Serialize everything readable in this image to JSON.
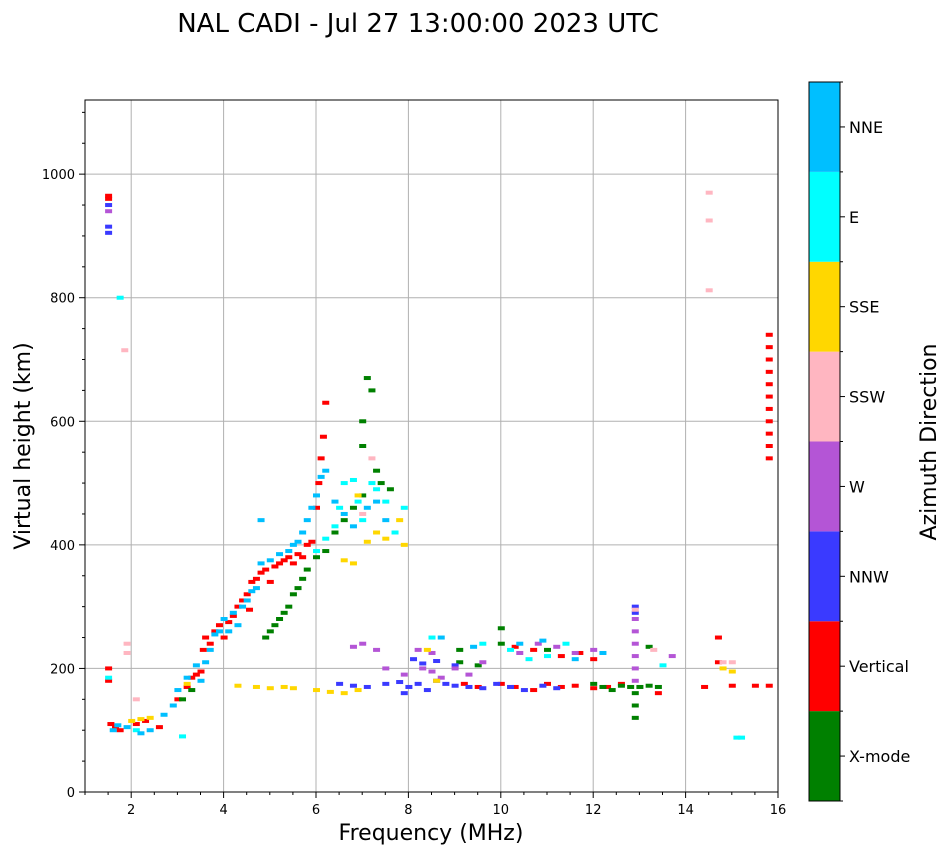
{
  "chart_data": {
    "type": "scatter",
    "title": "NAL CADI - Jul 27 13:00:00 2023 UTC",
    "xlabel": "Frequency (MHz)",
    "ylabel": "Virtual height (km)",
    "xlim": [
      1,
      16
    ],
    "ylim": [
      0,
      1120
    ],
    "xticks": [
      2,
      4,
      6,
      8,
      10,
      12,
      14,
      16
    ],
    "yticks": [
      0,
      200,
      400,
      600,
      800,
      1000
    ],
    "grid": true,
    "colorbar": {
      "label": "Azimuth Direction",
      "categories": [
        "X-mode",
        "Vertical",
        "NNW",
        "W",
        "SSW",
        "SSE",
        "E",
        "NNE"
      ],
      "colors": {
        "X-mode": "#008000",
        "Vertical": "#ff0000",
        "NNW": "#3a3aff",
        "W": "#b455d6",
        "SSW": "#ffb6c1",
        "SSE": "#ffd700",
        "E": "#00ffff",
        "NNE": "#00bfff"
      }
    },
    "series": [
      {
        "name": "Vertical",
        "points": [
          [
            1.5,
            965
          ],
          [
            1.5,
            960
          ],
          [
            1.5,
            200
          ],
          [
            1.5,
            180
          ],
          [
            1.55,
            110
          ],
          [
            1.65,
            105
          ],
          [
            1.75,
            100
          ],
          [
            2.1,
            110
          ],
          [
            2.3,
            115
          ],
          [
            2.6,
            105
          ],
          [
            3.0,
            150
          ],
          [
            3.2,
            170
          ],
          [
            3.3,
            185
          ],
          [
            3.4,
            190
          ],
          [
            3.5,
            195
          ],
          [
            3.55,
            230
          ],
          [
            3.6,
            250
          ],
          [
            3.7,
            240
          ],
          [
            3.8,
            260
          ],
          [
            3.9,
            270
          ],
          [
            4.0,
            250
          ],
          [
            4.1,
            275
          ],
          [
            4.2,
            285
          ],
          [
            4.3,
            300
          ],
          [
            4.4,
            310
          ],
          [
            4.5,
            320
          ],
          [
            4.55,
            295
          ],
          [
            4.6,
            340
          ],
          [
            4.7,
            345
          ],
          [
            4.8,
            355
          ],
          [
            4.9,
            360
          ],
          [
            5.0,
            340
          ],
          [
            5.1,
            365
          ],
          [
            5.2,
            370
          ],
          [
            5.3,
            375
          ],
          [
            5.4,
            380
          ],
          [
            5.5,
            370
          ],
          [
            5.6,
            385
          ],
          [
            5.7,
            380
          ],
          [
            5.8,
            400
          ],
          [
            5.9,
            405
          ],
          [
            6.0,
            460
          ],
          [
            6.05,
            500
          ],
          [
            6.1,
            540
          ],
          [
            6.15,
            575
          ],
          [
            6.2,
            630
          ],
          [
            9.2,
            175
          ],
          [
            9.5,
            170
          ],
          [
            10.0,
            175
          ],
          [
            10.3,
            170
          ],
          [
            10.7,
            165
          ],
          [
            11.0,
            175
          ],
          [
            11.3,
            170
          ],
          [
            11.6,
            172
          ],
          [
            12.0,
            168
          ],
          [
            12.3,
            170
          ],
          [
            12.6,
            175
          ],
          [
            13.4,
            160
          ],
          [
            14.4,
            170
          ],
          [
            14.7,
            250
          ],
          [
            14.7,
            210
          ],
          [
            15.0,
            172
          ],
          [
            15.5,
            172
          ],
          [
            15.8,
            172
          ],
          [
            15.8,
            740
          ],
          [
            15.8,
            720
          ],
          [
            15.8,
            700
          ],
          [
            15.8,
            680
          ],
          [
            15.8,
            660
          ],
          [
            15.8,
            640
          ],
          [
            15.8,
            620
          ],
          [
            15.8,
            600
          ],
          [
            15.8,
            580
          ],
          [
            15.8,
            560
          ],
          [
            15.8,
            540
          ],
          [
            10.3,
            235
          ],
          [
            10.7,
            230
          ],
          [
            11.3,
            220
          ],
          [
            11.7,
            225
          ],
          [
            12.0,
            215
          ]
        ]
      },
      {
        "name": "X-mode",
        "points": [
          [
            3.1,
            150
          ],
          [
            3.3,
            165
          ],
          [
            4.9,
            250
          ],
          [
            5.0,
            260
          ],
          [
            5.1,
            270
          ],
          [
            5.2,
            280
          ],
          [
            5.3,
            290
          ],
          [
            5.4,
            300
          ],
          [
            5.5,
            320
          ],
          [
            5.6,
            330
          ],
          [
            5.7,
            345
          ],
          [
            5.8,
            360
          ],
          [
            6.0,
            380
          ],
          [
            6.2,
            390
          ],
          [
            6.4,
            420
          ],
          [
            6.6,
            440
          ],
          [
            6.8,
            460
          ],
          [
            7.0,
            480
          ],
          [
            7.0,
            560
          ],
          [
            7.0,
            600
          ],
          [
            7.1,
            670
          ],
          [
            7.2,
            650
          ],
          [
            7.3,
            520
          ],
          [
            7.4,
            500
          ],
          [
            7.6,
            490
          ],
          [
            9.1,
            230
          ],
          [
            9.1,
            210
          ],
          [
            9.5,
            205
          ],
          [
            10.0,
            265
          ],
          [
            10.0,
            240
          ],
          [
            11.0,
            230
          ],
          [
            12.0,
            175
          ],
          [
            12.2,
            170
          ],
          [
            12.4,
            165
          ],
          [
            12.6,
            172
          ],
          [
            12.8,
            170
          ],
          [
            13.0,
            170
          ],
          [
            13.2,
            172
          ],
          [
            13.4,
            170
          ],
          [
            12.9,
            160
          ],
          [
            12.9,
            140
          ],
          [
            12.9,
            120
          ],
          [
            13.2,
            235
          ]
        ]
      },
      {
        "name": "NNW",
        "points": [
          [
            1.5,
            950
          ],
          [
            1.5,
            915
          ],
          [
            1.5,
            905
          ],
          [
            6.5,
            175
          ],
          [
            6.8,
            172
          ],
          [
            7.1,
            170
          ],
          [
            7.5,
            175
          ],
          [
            7.8,
            178
          ],
          [
            8.0,
            170
          ],
          [
            8.2,
            175
          ],
          [
            8.4,
            165
          ],
          [
            8.6,
            180
          ],
          [
            8.8,
            175
          ],
          [
            9.0,
            172
          ],
          [
            9.3,
            170
          ],
          [
            9.6,
            168
          ],
          [
            9.9,
            175
          ],
          [
            10.2,
            170
          ],
          [
            10.5,
            165
          ],
          [
            10.9,
            172
          ],
          [
            11.2,
            168
          ],
          [
            12.9,
            300
          ],
          [
            12.9,
            290
          ],
          [
            7.9,
            160
          ],
          [
            8.1,
            215
          ],
          [
            8.3,
            208
          ],
          [
            8.6,
            212
          ],
          [
            9.0,
            205
          ]
        ]
      },
      {
        "name": "W",
        "points": [
          [
            1.5,
            940
          ],
          [
            6.8,
            235
          ],
          [
            7.0,
            240
          ],
          [
            7.3,
            230
          ],
          [
            7.5,
            200
          ],
          [
            7.9,
            190
          ],
          [
            8.3,
            200
          ],
          [
            8.5,
            195
          ],
          [
            8.7,
            185
          ],
          [
            9.0,
            200
          ],
          [
            9.3,
            190
          ],
          [
            9.6,
            210
          ],
          [
            10.4,
            225
          ],
          [
            10.8,
            240
          ],
          [
            11.2,
            235
          ],
          [
            11.6,
            225
          ],
          [
            12.0,
            230
          ],
          [
            12.9,
            280
          ],
          [
            12.9,
            260
          ],
          [
            12.9,
            240
          ],
          [
            12.9,
            220
          ],
          [
            12.9,
            200
          ],
          [
            12.9,
            180
          ],
          [
            13.7,
            220
          ],
          [
            8.5,
            225
          ],
          [
            8.2,
            230
          ]
        ]
      },
      {
        "name": "SSW",
        "points": [
          [
            1.9,
            240
          ],
          [
            1.9,
            225
          ],
          [
            1.85,
            715
          ],
          [
            2.1,
            150
          ],
          [
            12.9,
            295
          ],
          [
            13.3,
            230
          ],
          [
            14.5,
            970
          ],
          [
            14.5,
            925
          ],
          [
            14.5,
            812
          ],
          [
            14.8,
            210
          ],
          [
            15.0,
            210
          ],
          [
            7.2,
            540
          ],
          [
            7.0,
            450
          ]
        ]
      },
      {
        "name": "SSE",
        "points": [
          [
            2.0,
            115
          ],
          [
            2.2,
            118
          ],
          [
            2.4,
            120
          ],
          [
            3.2,
            175
          ],
          [
            4.3,
            172
          ],
          [
            4.7,
            170
          ],
          [
            5.0,
            168
          ],
          [
            5.3,
            170
          ],
          [
            5.5,
            168
          ],
          [
            6.0,
            165
          ],
          [
            6.3,
            162
          ],
          [
            6.6,
            160
          ],
          [
            6.9,
            165
          ],
          [
            6.6,
            375
          ],
          [
            6.8,
            370
          ],
          [
            7.1,
            405
          ],
          [
            7.3,
            420
          ],
          [
            7.5,
            410
          ],
          [
            7.8,
            440
          ],
          [
            7.9,
            400
          ],
          [
            6.9,
            480
          ],
          [
            8.4,
            230
          ],
          [
            8.6,
            180
          ],
          [
            14.8,
            200
          ],
          [
            15.0,
            195
          ]
        ]
      },
      {
        "name": "E",
        "points": [
          [
            1.5,
            185
          ],
          [
            1.75,
            800
          ],
          [
            2.1,
            100
          ],
          [
            3.1,
            90
          ],
          [
            6.0,
            390
          ],
          [
            6.2,
            410
          ],
          [
            6.4,
            430
          ],
          [
            6.5,
            460
          ],
          [
            6.6,
            500
          ],
          [
            6.8,
            505
          ],
          [
            6.9,
            470
          ],
          [
            7.0,
            440
          ],
          [
            7.2,
            500
          ],
          [
            7.3,
            490
          ],
          [
            7.5,
            470
          ],
          [
            7.7,
            420
          ],
          [
            7.9,
            460
          ],
          [
            8.5,
            250
          ],
          [
            9.6,
            240
          ],
          [
            10.2,
            230
          ],
          [
            10.6,
            215
          ],
          [
            11.0,
            220
          ],
          [
            11.4,
            240
          ],
          [
            13.5,
            205
          ],
          [
            15.1,
            88
          ],
          [
            15.2,
            88
          ]
        ]
      },
      {
        "name": "NNE",
        "points": [
          [
            1.6,
            100
          ],
          [
            1.7,
            108
          ],
          [
            1.9,
            105
          ],
          [
            2.2,
            95
          ],
          [
            2.4,
            100
          ],
          [
            2.7,
            125
          ],
          [
            2.9,
            140
          ],
          [
            3.0,
            165
          ],
          [
            3.2,
            185
          ],
          [
            3.4,
            205
          ],
          [
            3.5,
            180
          ],
          [
            3.6,
            210
          ],
          [
            3.7,
            230
          ],
          [
            3.8,
            255
          ],
          [
            3.9,
            260
          ],
          [
            4.0,
            280
          ],
          [
            4.1,
            260
          ],
          [
            4.2,
            290
          ],
          [
            4.3,
            270
          ],
          [
            4.4,
            300
          ],
          [
            4.5,
            310
          ],
          [
            4.6,
            325
          ],
          [
            4.7,
            330
          ],
          [
            4.8,
            440
          ],
          [
            4.8,
            370
          ],
          [
            5.0,
            375
          ],
          [
            5.2,
            385
          ],
          [
            5.4,
            390
          ],
          [
            5.5,
            400
          ],
          [
            5.6,
            405
          ],
          [
            5.7,
            420
          ],
          [
            5.8,
            440
          ],
          [
            5.9,
            460
          ],
          [
            6.0,
            480
          ],
          [
            6.1,
            510
          ],
          [
            6.2,
            520
          ],
          [
            6.4,
            470
          ],
          [
            6.6,
            450
          ],
          [
            6.8,
            430
          ],
          [
            7.1,
            460
          ],
          [
            7.3,
            470
          ],
          [
            7.5,
            440
          ],
          [
            8.7,
            250
          ],
          [
            9.4,
            235
          ],
          [
            10.4,
            240
          ],
          [
            10.9,
            245
          ],
          [
            11.6,
            215
          ],
          [
            12.2,
            225
          ]
        ]
      }
    ]
  }
}
